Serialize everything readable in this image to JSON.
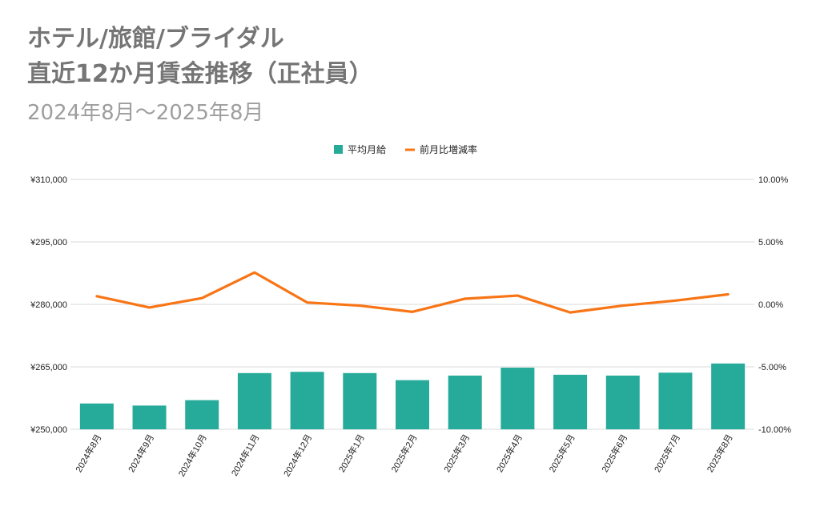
{
  "title_lines": [
    "ホテル/旅館/ブライダル",
    "直近12か月賃金推移（正社員）"
  ],
  "subtitle": "2024年8月～2025年8月",
  "colors": {
    "bar": "#26ab9a",
    "line": "#f87516",
    "grid": "#d9d9d9",
    "title": "#757575",
    "subtitle": "#9e9e9e"
  },
  "chart_data": {
    "type": "bar",
    "categories": [
      "2024年8月",
      "2024年9月",
      "2024年10月",
      "2024年11月",
      "2024年12月",
      "2025年1月",
      "2025年2月",
      "2025年3月",
      "2025年4月",
      "2025年5月",
      "2025年6月",
      "2025年7月",
      "2025年8月"
    ],
    "series": [
      {
        "name": "平均月給",
        "type": "bar",
        "axis": "left",
        "values": [
          256200,
          255700,
          257000,
          263500,
          263800,
          263500,
          261800,
          262900,
          264800,
          263100,
          262900,
          263600,
          265800
        ]
      },
      {
        "name": "前月比増減率",
        "type": "line",
        "axis": "right",
        "values": [
          0.65,
          -0.25,
          0.5,
          2.55,
          0.15,
          -0.1,
          -0.6,
          0.45,
          0.7,
          -0.65,
          -0.1,
          0.3,
          0.8
        ]
      }
    ],
    "y_left": {
      "min": 250000,
      "max": 310000,
      "ticks": [
        "¥250,000",
        "¥265,000",
        "¥280,000",
        "¥295,000",
        "¥310,000"
      ]
    },
    "y_right": {
      "min": -10,
      "max": 10,
      "ticks": [
        "-10.00%",
        "-5.00%",
        "0.00%",
        "5.00%",
        "10.00%"
      ]
    },
    "grid": true,
    "legend": "top-center"
  }
}
